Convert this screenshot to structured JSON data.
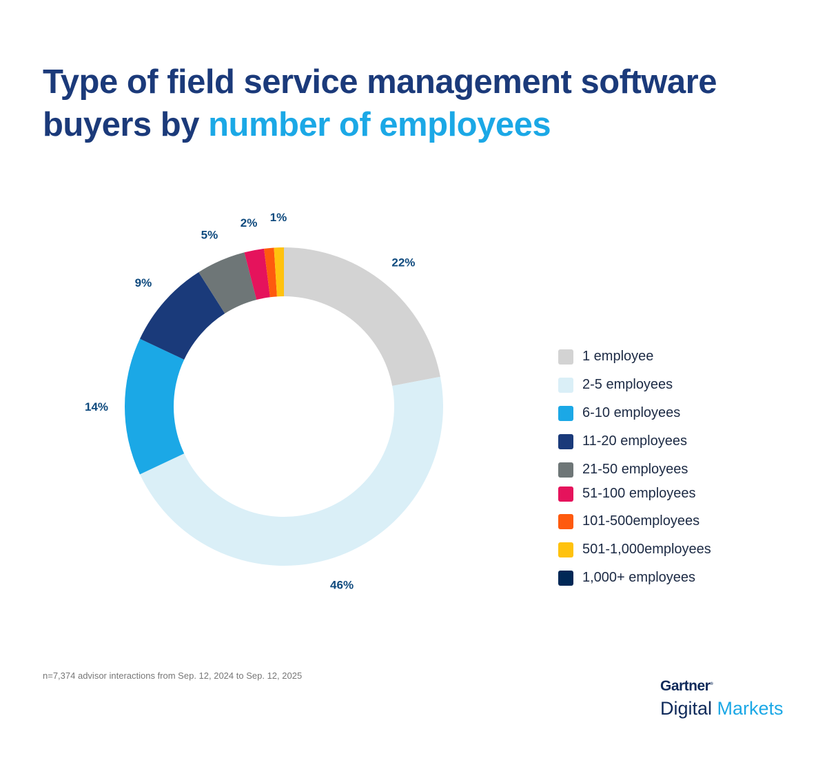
{
  "title": {
    "part1": "Type of field service management software buyers by ",
    "part2": "number of employees"
  },
  "chart_data": {
    "type": "pie",
    "donut": true,
    "title": "Type of field service management software buyers by number of employees",
    "start": "top, clockwise",
    "slices": [
      {
        "name": "1 employee",
        "value": 22,
        "label": "22%",
        "color": "#d3d3d3"
      },
      {
        "name": "2-5 employees",
        "value": 46,
        "label": "46%",
        "color": "#daeff7"
      },
      {
        "name": "6-10 employees",
        "value": 14,
        "label": "14%",
        "color": "#1ba8e6"
      },
      {
        "name": "11-20 employees",
        "value": 9,
        "label": "9%",
        "color": "#1a3a7a"
      },
      {
        "name": "21-50 employees",
        "value": 5,
        "label": "5%",
        "color": "#6e7677"
      },
      {
        "name": "51-100 employees",
        "value": 2,
        "label": "2%",
        "color": "#e5135c"
      },
      {
        "name": "101-500employees",
        "value": 1,
        "label": "",
        "color": "#fe5a0e"
      },
      {
        "name": "501-1,000employees",
        "value": 1,
        "label": "1%",
        "color": "#ffc20e"
      },
      {
        "name": "1,000+ employees",
        "value": 0,
        "label": "",
        "color": "#002856"
      }
    ],
    "legend": "right"
  },
  "footnote": "n=7,374 advisor interactions from Sep. 12, 2024 to Sep. 12, 2025",
  "logo": {
    "line1": "Gartner",
    "line2a": "Digital ",
    "line2b": "Markets"
  }
}
